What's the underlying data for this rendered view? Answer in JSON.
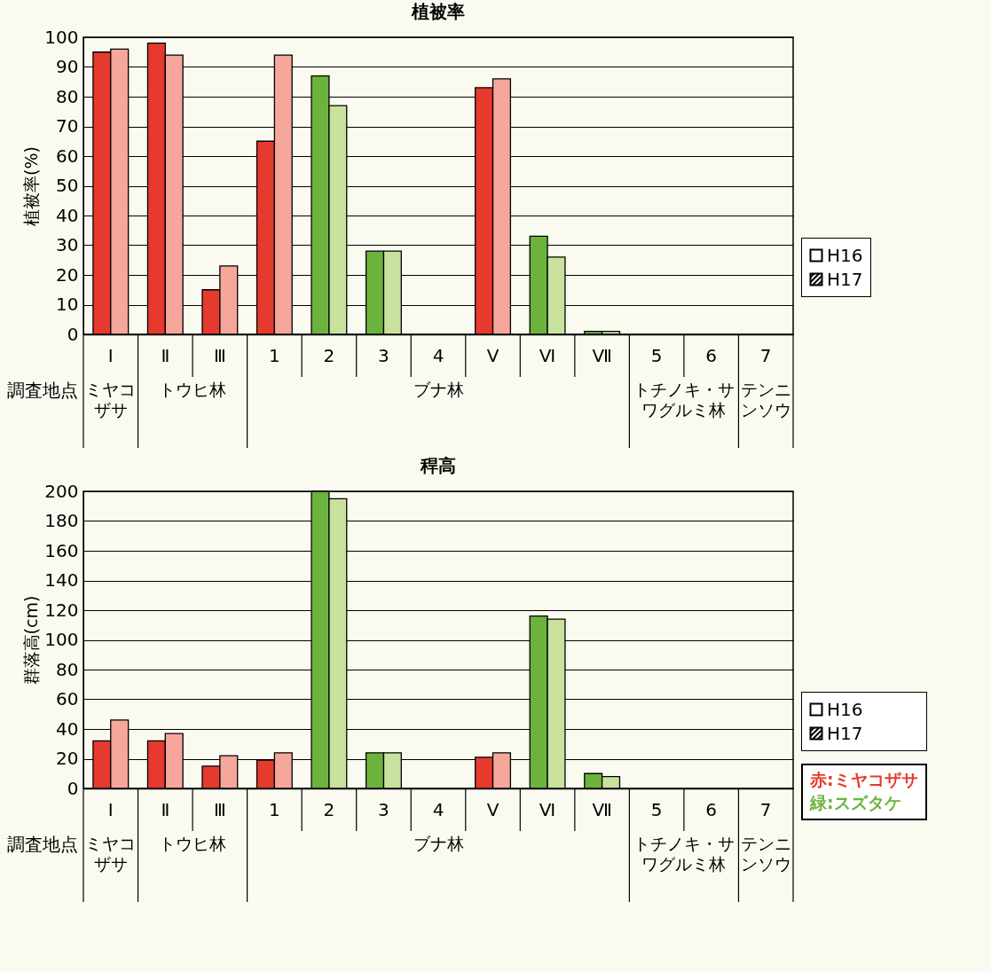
{
  "chart_data": [
    {
      "type": "bar",
      "title": "植被率",
      "ylabel": "植被率(%)",
      "xlabel": "調査地点",
      "categories": [
        "Ⅰ",
        "Ⅱ",
        "Ⅲ",
        "1",
        "2",
        "3",
        "4",
        "Ⅴ",
        "Ⅵ",
        "Ⅶ",
        "5",
        "6",
        "7"
      ],
      "series": [
        {
          "name": "H16",
          "colors": [
            "#e63a2e",
            "#e63a2e",
            "#e63a2e",
            "#e63a2e",
            "#6cb33e",
            "#6cb33e",
            null,
            "#e63a2e",
            "#6cb33e",
            "#6cb33e",
            null,
            null,
            null
          ],
          "values": [
            95,
            98,
            15,
            65,
            87,
            28,
            null,
            83,
            33,
            1,
            null,
            null,
            null
          ]
        },
        {
          "name": "H17",
          "colors": [
            "#f5a79b",
            "#f5a79b",
            "#f5a79b",
            "#f5a79b",
            "#c8e29e",
            "#c8e29e",
            null,
            "#f5a79b",
            "#c8e29e",
            "#c8e29e",
            null,
            null,
            null
          ],
          "values": [
            96,
            94,
            23,
            94,
            77,
            28,
            null,
            86,
            26,
            1,
            null,
            null,
            null
          ]
        }
      ],
      "ylim": [
        0,
        100
      ],
      "yticks": [
        0,
        10,
        20,
        30,
        40,
        50,
        60,
        70,
        80,
        90,
        100
      ],
      "grid": "y",
      "legend": "right",
      "annotations": [
        "ミヤコザサ",
        "トウヒ林",
        "ブナ林",
        "トチノキ・サワグルミ林",
        "テンニンソウ"
      ]
    },
    {
      "type": "bar",
      "title": "稈高",
      "ylabel": "群落高(cm)",
      "xlabel": "調査地点",
      "categories": [
        "Ⅰ",
        "Ⅱ",
        "Ⅲ",
        "1",
        "2",
        "3",
        "4",
        "Ⅴ",
        "Ⅵ",
        "Ⅶ",
        "5",
        "6",
        "7"
      ],
      "series": [
        {
          "name": "H16",
          "colors": [
            "#e63a2e",
            "#e63a2e",
            "#e63a2e",
            "#e63a2e",
            "#6cb33e",
            "#6cb33e",
            null,
            "#e63a2e",
            "#6cb33e",
            "#6cb33e",
            null,
            null,
            null
          ],
          "values": [
            32,
            32,
            15,
            19,
            200,
            24,
            null,
            21,
            116,
            10,
            null,
            null,
            null
          ]
        },
        {
          "name": "H17",
          "colors": [
            "#f5a79b",
            "#f5a79b",
            "#f5a79b",
            "#f5a79b",
            "#c8e29e",
            "#c8e29e",
            null,
            "#f5a79b",
            "#c8e29e",
            "#c8e29e",
            null,
            null,
            null
          ],
          "values": [
            46,
            37,
            22,
            24,
            195,
            24,
            null,
            24,
            114,
            8,
            null,
            null,
            null
          ]
        }
      ],
      "ylim": [
        0,
        200
      ],
      "yticks": [
        0,
        20,
        40,
        60,
        80,
        100,
        120,
        140,
        160,
        180,
        200
      ],
      "grid": "y",
      "legend": "right",
      "annotations": [
        "ミヤコザサ",
        "トウヒ林",
        "ブナ林",
        "トチノキ・サワグルミ林",
        "テンニンソウ",
        "赤:ミヤコザサ",
        "緑:スズタケ"
      ]
    }
  ]
}
